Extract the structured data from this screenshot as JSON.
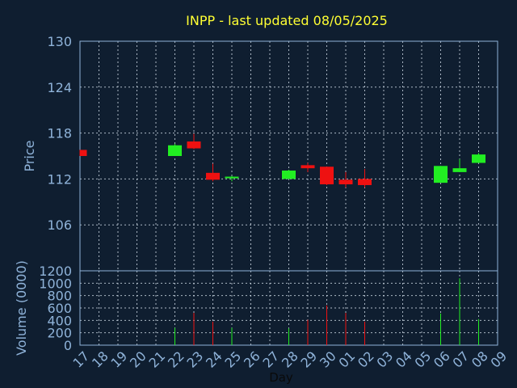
{
  "chart_data": {
    "type": "candlestick",
    "title": "INPP - last updated 08/05/2025",
    "xlabel": "Day",
    "price_panel": {
      "ylabel": "Price",
      "ylim": [
        100,
        130
      ],
      "yticks": [
        "130",
        "124",
        "118",
        "112",
        "106"
      ],
      "grid": true
    },
    "volume_panel": {
      "ylabel": "Volume (0000)",
      "ylim": [
        0,
        1200
      ],
      "yticks": [
        "1200",
        "1000",
        "800",
        "600",
        "400",
        "200",
        "0"
      ],
      "grid": true
    },
    "x_ticks": [
      "17",
      "18",
      "19",
      "20",
      "21",
      "22",
      "23",
      "24",
      "25",
      "26",
      "27",
      "28",
      "29",
      "30",
      "01",
      "02",
      "03",
      "04",
      "05",
      "06",
      "07",
      "08",
      "09"
    ],
    "candles": [
      {
        "day": "17",
        "open": 115.8,
        "high": 115.8,
        "low": 115.0,
        "close": 115.0,
        "volume": 0
      },
      {
        "day": "22",
        "open": 115.0,
        "high": 116.6,
        "low": 115.0,
        "close": 116.4,
        "volume": 280
      },
      {
        "day": "23",
        "open": 116.9,
        "high": 117.9,
        "low": 115.9,
        "close": 116.0,
        "volume": 520
      },
      {
        "day": "24",
        "open": 112.8,
        "high": 114.0,
        "low": 111.7,
        "close": 111.9,
        "volume": 380
      },
      {
        "day": "25",
        "open": 112.1,
        "high": 112.4,
        "low": 111.7,
        "close": 112.3,
        "volume": 280
      },
      {
        "day": "28",
        "open": 112.0,
        "high": 113.2,
        "low": 112.0,
        "close": 113.1,
        "volume": 270
      },
      {
        "day": "29",
        "open": 113.8,
        "high": 114.1,
        "low": 112.9,
        "close": 113.4,
        "volume": 410
      },
      {
        "day": "30",
        "open": 113.6,
        "high": 113.6,
        "low": 111.2,
        "close": 111.3,
        "volume": 640
      },
      {
        "day": "01",
        "open": 111.9,
        "high": 112.9,
        "low": 110.9,
        "close": 111.3,
        "volume": 520
      },
      {
        "day": "02",
        "open": 112.0,
        "high": 113.3,
        "low": 110.9,
        "close": 111.2,
        "volume": 380
      },
      {
        "day": "06",
        "open": 111.5,
        "high": 113.7,
        "low": 111.5,
        "close": 113.7,
        "volume": 510
      },
      {
        "day": "07",
        "open": 112.9,
        "high": 114.6,
        "low": 112.9,
        "close": 113.4,
        "volume": 1080
      },
      {
        "day": "08",
        "open": 114.1,
        "high": 115.4,
        "low": 114.1,
        "close": 115.2,
        "volume": 420
      }
    ],
    "colors": {
      "up": "#22ee22",
      "down": "#ee1111",
      "background": "#0f1e30",
      "frame": "#8fb3d9",
      "title": "#ffff33"
    }
  }
}
